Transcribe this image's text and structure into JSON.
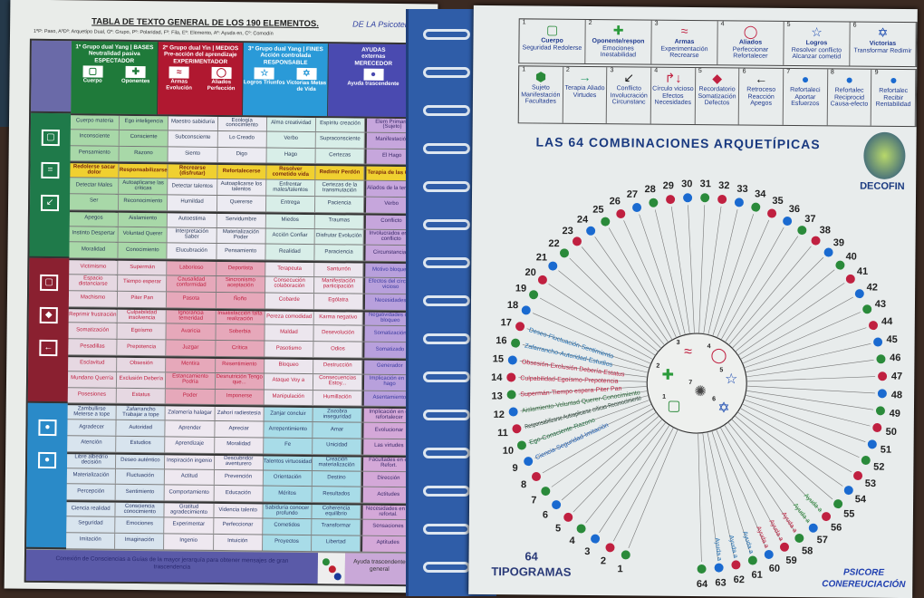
{
  "left_page": {
    "title": "TABLA DE TEXTO GENERAL DE LOS 190 ELEMENTOS.",
    "handwritten_note": "DE LA Psicoterapia",
    "subtitle": "1ºP: Paso, AºDº: Arquetipo Dual, Gº: Grupo, Pº: Polaridad, Fº: Fila, Eº: Elemento, Aº: Ayuda en, Cº: Comodín",
    "headers": [
      {
        "title": "1º Grupo dual Yang | BASES",
        "subtitle": "Neutralidad pasiva",
        "role": "ESPECTADOR",
        "items": [
          "Cuerpo",
          "Oponentes"
        ],
        "color": "#1f7a3a"
      },
      {
        "title": "2º Grupo dual Yin | MEDIOS",
        "subtitle": "Pre-acción del aprendizaje",
        "role": "EXPERIMENTADOR",
        "items": [
          "Armas Evolución",
          "Aliados Perfección"
        ],
        "color": "#b01830"
      },
      {
        "title": "3º Grupo dual Yang | FINES",
        "subtitle": "Acción controlada",
        "role": "RESPONSABLE",
        "items": [
          "Logros Triunfos",
          "Victorias Metas de Vida"
        ],
        "color": "#2a9ad8"
      },
      {
        "title": "AYUDAS",
        "subtitle": "externas",
        "role": "MERECEDOR",
        "items": [
          "Ayuda trascendente"
        ],
        "color": "#4a4ab0"
      }
    ],
    "rows": [
      [
        "Cuerpo materia",
        "Ego inteligencia",
        "Maestro sabiduría",
        "Ecología conocimiento",
        "Alma creatividad",
        "Espíritu creación",
        "Elem Primario (Sujeto)"
      ],
      [
        "Inconsciente",
        "Consciente",
        "Subconsciente",
        "Lo Creado",
        "Verbo",
        "Supraconsciente",
        "Manifestación"
      ],
      [
        "Pensamiento",
        "Razono",
        "Siento",
        "Digo",
        "Hago",
        "Certezas",
        "El Hago"
      ],
      [
        "Redolerse sacar dolor",
        "Responsabilizarse",
        "Recrearse (disfrutar)",
        "Refortalecerse",
        "Resolver cometido vida",
        "Redimir Perdón",
        "Terapia de las 6 Re"
      ],
      [
        "Detectar Males",
        "Autoaplicarse las críticas",
        "Detectar talentos",
        "Autoaplicarse los talentos",
        "Enfrentar males/talentos",
        "Certezas de la transmutación",
        "Aliados de la terapia"
      ],
      [
        "Ser",
        "Reconocimiento",
        "Humildad",
        "Quererse",
        "Entrega",
        "Paciencia",
        "Verbo"
      ],
      [
        "Apegos",
        "Aislamiento",
        "Autoestima",
        "Servidumbre",
        "Miedos",
        "Traumas",
        "Conflicto"
      ],
      [
        "Instinto Despertar",
        "Voluntad Querer",
        "Interpretación Saber",
        "Materialización Poder",
        "Acción Confiar",
        "Disfrutar Evolución",
        "Involucrados en el conflicto"
      ],
      [
        "Moralidad",
        "Conocimiento",
        "Elucubración",
        "Pensamiento",
        "Realidad",
        "Paraciencia",
        "Circunstancias"
      ],
      [
        "Victimismo",
        "Supermán",
        "Laborioso",
        "Deportista",
        "Terapeuta",
        "Santurrón",
        "Motivo bloqueo"
      ],
      [
        "Espacio distanciarse",
        "Tiempo esperar",
        "Causalidad conformidad",
        "Sincronismo aceptación",
        "Consecución colaboración",
        "Manifestación participación",
        "Efectos del círculo vicioso"
      ],
      [
        "Machismo",
        "Piter Pan",
        "Pasota",
        "Ñoño",
        "Cobarde",
        "Ególatra",
        "Necesidades"
      ],
      [
        "Reprimir frustración",
        "Culpabilidad insolvencia",
        "Ignorancia temeridad",
        "Insatisfacción falta realización",
        "Pereza comodidad",
        "Karma negativo",
        "Negatividades del bloqueo"
      ],
      [
        "Somatización",
        "Egoísmo",
        "Avaricia",
        "Soberbia",
        "Maldad",
        "Desevolución",
        "Somatización"
      ],
      [
        "Pesadillas",
        "Prepotencia",
        "Juzgar",
        "Crítica",
        "Pasotismo",
        "Odios",
        "Somatizado"
      ],
      [
        "Esclavitud",
        "Obsesión",
        "Mentira",
        "Resentimiento",
        "Bloqueo",
        "Destrucción",
        "Generador"
      ],
      [
        "Mundano Querría",
        "Exclusión Debería",
        "Estancamiento Podría",
        "Desnutrición Tengo que...",
        "Ataque Voy a",
        "Consecuencias Estoy...",
        "Implicación en el hago"
      ],
      [
        "Posesiones",
        "Estatus",
        "Poder",
        "Imponerse",
        "Manipulación",
        "Humillación",
        "Asentamiento"
      ],
      [
        "Zambullirse Meterse a tope",
        "Zafarrancho Trabajar a tope",
        "Zalamería halagar",
        "Zahorí radiestesia",
        "Zanjar concluir",
        "Zozobra inseguridad",
        "Implicación en el refortalecer"
      ],
      [
        "Agradecer",
        "Autoridad",
        "Aprender",
        "Apreciar",
        "Arrepentimiento",
        "Amar",
        "Evolucionar"
      ],
      [
        "Atención",
        "Estudios",
        "Aprendizaje",
        "Moralidad",
        "Fe",
        "Unicidad",
        "Las virtudes"
      ],
      [
        "Libre albedrío decisión",
        "Deseo auténtico",
        "Inspiración ingenio",
        "Descubridor aventurero",
        "Talentos virtuosidad",
        "Creación materialización",
        "Facultades en el Refort."
      ],
      [
        "Materialización",
        "Fluctuación",
        "Actitud",
        "Prevención",
        "Orientación",
        "Destino",
        "Dirección"
      ],
      [
        "Percepción",
        "Sentimiento",
        "Comportamiento",
        "Educación",
        "Méritos",
        "Resultados",
        "Actitudes"
      ],
      [
        "Ciencia realidad",
        "Consciencia conocimiento",
        "Gratitud agradecimiento",
        "Videncia talento",
        "Sabiduría conocer profundo",
        "Coherencia equilibrio",
        "Necesidades en el refortal."
      ],
      [
        "Seguridad",
        "Emociones",
        "Experimentar",
        "Perfeccionar",
        "Cometidos",
        "Transformar",
        "Sensaciones"
      ],
      [
        "Imitación",
        "Imaginación",
        "Ingenio",
        "Intuición",
        "Proyectos",
        "Libertad",
        "Aptitudes"
      ]
    ],
    "footer_text": "Conexión de Consciencias a Guías de la mayor jerarquía para obtener mensajes de gran trascendencia",
    "footer_help": "Ayuda trascendente general"
  },
  "right_page": {
    "legend_top": [
      {
        "n": "1",
        "symbol": "▢",
        "label": "Cuerpo",
        "lines": "Seguridad Redolerse",
        "color": "#2a8a3a"
      },
      {
        "n": "2",
        "symbol": "✚",
        "label": "Oponente/respon",
        "lines": "Emociones Inestabilidad",
        "color": "#2a9a3a"
      },
      {
        "n": "3",
        "symbol": "≈",
        "label": "Armas",
        "lines": "Experimentación Recrearse",
        "color": "#c02040"
      },
      {
        "n": "4",
        "symbol": "◯",
        "label": "Aliados",
        "lines": "Perfeccionar Refortalecer",
        "color": "#c02040"
      },
      {
        "n": "5",
        "symbol": "☆",
        "label": "Logros",
        "lines": "Resolver conflicto Alcanzar cometid",
        "color": "#1a4ab0"
      },
      {
        "n": "6",
        "symbol": "✡",
        "label": "Victorias",
        "lines": "Transformar Redimir",
        "color": "#1a4ab0"
      }
    ],
    "legend_bottom": [
      {
        "n": "1",
        "symbol": "⬢",
        "lines": "Sujeto Manifestación Facultades",
        "color": "#2a8a3a"
      },
      {
        "n": "2",
        "symbol": "→",
        "lines": "Terapia Aliado Virtudes",
        "color": "#2a9a6a"
      },
      {
        "n": "3",
        "symbol": "↙",
        "lines": "Conflicto Involucración Circunstanc",
        "color": "#222"
      },
      {
        "n": "4",
        "symbol": "↱↓",
        "lines": "Círculo vicioso Efectos Necesidades",
        "color": "#c02040"
      },
      {
        "n": "5",
        "symbol": "◆",
        "lines": "Recordatorio Somatización Defectos",
        "color": "#c02040"
      },
      {
        "n": "6",
        "symbol": "←",
        "lines": "Retroceso Reacción Apegos",
        "color": "#222"
      },
      {
        "n": "7",
        "symbol": "●",
        "lines": "Refortaleci Aportar Esfuerzos",
        "color": "#1a6ad0"
      },
      {
        "n": "8",
        "symbol": "●",
        "lines": "Refortalec Reciprocid Causa-efecto",
        "color": "#1a6ad0"
      },
      {
        "n": "9",
        "symbol": "●",
        "lines": "Refortalec Recibir Rentabilidad",
        "color": "#1a6ad0"
      }
    ],
    "title": "LAS 64 COMBINACIONES ARQUETÍPICAS",
    "logo_text": "DECOFIN",
    "center_numbers": [
      "1",
      "2",
      "3",
      "4",
      "5",
      "6",
      "7"
    ],
    "combination_numbers": [
      "1",
      "2",
      "3",
      "4",
      "5",
      "6",
      "7",
      "8",
      "9",
      "10",
      "11",
      "12",
      "13",
      "14",
      "15",
      "16",
      "17",
      "18",
      "19",
      "20",
      "21",
      "22",
      "23",
      "24",
      "25",
      "26",
      "27",
      "28",
      "29",
      "30",
      "31",
      "32",
      "33",
      "34",
      "35",
      "36",
      "37",
      "38",
      "39",
      "40",
      "41",
      "42",
      "43",
      "44",
      "45",
      "46",
      "47",
      "48",
      "49",
      "50",
      "51",
      "52",
      "53",
      "54",
      "55",
      "56",
      "57",
      "58",
      "59",
      "60",
      "61",
      "62",
      "63",
      "64"
    ],
    "spoke_labels": [
      {
        "n": "9",
        "text": "Ciencia-Seguridad-Imitación",
        "color": "#1a5ab0"
      },
      {
        "n": "10",
        "text": "Ego-Consciente-Razono",
        "color": "#1a6a3a"
      },
      {
        "n": "11",
        "text": "Responsabilizarse Autoaplicarse críticas-Reconocimiento",
        "color": "#1a3a2a"
      },
      {
        "n": "12",
        "text": "Aislamiento-Voluntad Querer-Conocimiento",
        "color": "#2a6a3a"
      },
      {
        "n": "13",
        "text": "Supermán-Tiempo espera-Piter Pan",
        "color": "#c02040"
      },
      {
        "n": "14",
        "text": "Culpabilidad-Egoísmo-Prepotencia",
        "color": "#c02040"
      },
      {
        "n": "15",
        "text": "Obsesión-Exclusión Debería-Estatus",
        "color": "#c02040"
      },
      {
        "n": "16",
        "text": "Zafarrancho-Autoridad-Estudios",
        "color": "#1a6ab0"
      },
      {
        "n": "17",
        "text": "Deseo-Fluctuación-Sentimiento",
        "color": "#1a6ab0"
      },
      {
        "n": "56",
        "text": "Ayuda a",
        "color": "#2a8a3a"
      },
      {
        "n": "57",
        "text": "Ayuda a",
        "color": "#2a8a3a"
      },
      {
        "n": "58",
        "text": "Ayuda a",
        "color": "#c02040"
      },
      {
        "n": "59",
        "text": "Ayuda a",
        "color": "#c02040"
      },
      {
        "n": "60",
        "text": "Ayuda a",
        "color": "#c02040"
      },
      {
        "n": "61",
        "text": "Ayuda a",
        "color": "#1a6ab0"
      },
      {
        "n": "62",
        "text": "Ayuda a",
        "color": "#1a6ab0"
      },
      {
        "n": "63",
        "text": "Ayuda a",
        "color": "#1a6ab0"
      }
    ],
    "footer_count": "64",
    "footer_label": "TIPOGRAMAS",
    "signature_line1": "PSICORE",
    "signature_line2": "CONEREUCIACIÓN"
  }
}
